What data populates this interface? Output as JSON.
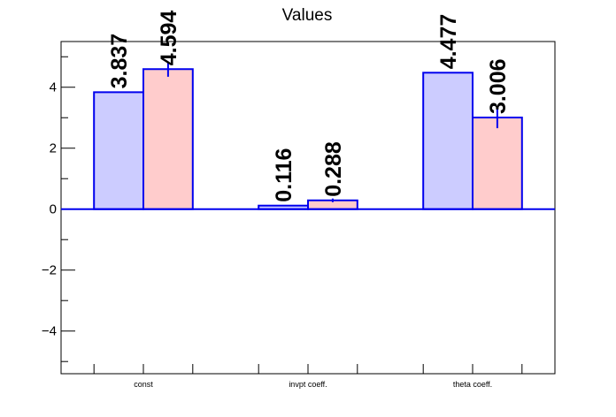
{
  "chart_data": {
    "type": "bar",
    "title": "Values",
    "categories": [
      "const",
      "invpt coeff.",
      "theta coeff."
    ],
    "series": [
      {
        "values": [
          3.837,
          0.116,
          4.477
        ],
        "errors": [
          0,
          0,
          0
        ]
      },
      {
        "values": [
          4.594,
          0.288,
          3.006
        ],
        "errors": [
          0.25,
          0.06,
          0.35
        ]
      }
    ],
    "value_labels": [
      [
        "3.837",
        "0.116",
        "4.477"
      ],
      [
        "4.594",
        "0.288",
        "3.006"
      ]
    ],
    "ylim": [
      -5.4,
      5.5
    ],
    "yticks": [
      -4,
      -2,
      0,
      2,
      4
    ],
    "ytick_labels": [
      "−4",
      "−2",
      "0",
      "2",
      "4"
    ],
    "grid": false,
    "colors": {
      "series_fill": [
        "#ccccff",
        "#ffcccc"
      ],
      "bar_stroke": "#0000ee",
      "zero_line": "#0000ee",
      "axis": "#000000"
    }
  }
}
